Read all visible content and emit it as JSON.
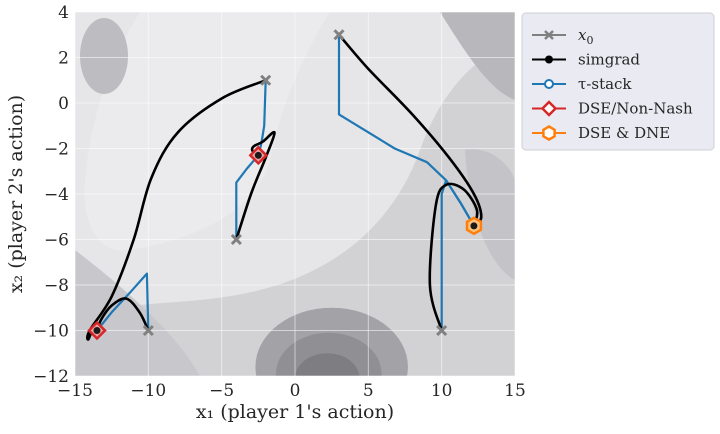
{
  "chart_data": {
    "type": "line",
    "xlabel": "x₁ (player 1's action)",
    "ylabel": "x₂ (player 2's action)",
    "xlim": [
      -15,
      15
    ],
    "ylim": [
      -12,
      4
    ],
    "xticks": [
      -15,
      -10,
      -5,
      0,
      5,
      10,
      15
    ],
    "yticks": [
      4,
      2,
      0,
      -2,
      -4,
      -6,
      -8,
      -10,
      -12
    ],
    "xtick_labels": [
      "−15",
      "−10",
      "−5",
      "0",
      "5",
      "10",
      "15"
    ],
    "ytick_labels": [
      "4",
      "2",
      "0",
      "−2",
      "−4",
      "−6",
      "−8",
      "−10",
      "−12"
    ],
    "grid": true,
    "legend_position": "outside-right-top",
    "colors": {
      "x0": "#808080",
      "simgrad": "#000000",
      "tau_stack": "#1f77b4",
      "dse_non_nash": "#d62728",
      "dse_dne": "#ff7f0e"
    },
    "legend": [
      {
        "key": "x0",
        "label": "x0",
        "marker": "x"
      },
      {
        "key": "simgrad",
        "label": "simgrad",
        "marker": "dot"
      },
      {
        "key": "tau_stack",
        "label": "τ-stack",
        "marker": "circle"
      },
      {
        "key": "dse_non_nash",
        "label": "DSE/Non-Nash",
        "marker": "diamond"
      },
      {
        "key": "dse_dne",
        "label": "DSE & DNE",
        "marker": "hexagon"
      }
    ],
    "initial_points": [
      {
        "x": -2.0,
        "y": 1.0
      },
      {
        "x": -4.0,
        "y": -6.0
      },
      {
        "x": -10.0,
        "y": -10.0
      },
      {
        "x": 3.0,
        "y": 3.0
      },
      {
        "x": 10.0,
        "y": -10.0
      }
    ],
    "dse_non_nash_points": [
      {
        "x": -13.5,
        "y": -10.0
      },
      {
        "x": -2.5,
        "y": -2.3
      }
    ],
    "dse_dne_points": [
      {
        "x": 12.2,
        "y": -5.4
      }
    ],
    "simgrad_paths": [
      [
        [
          -2,
          1
        ],
        [
          -5,
          0.2
        ],
        [
          -8,
          -1.3
        ],
        [
          -9.8,
          -3.3
        ],
        [
          -11,
          -6
        ],
        [
          -12.5,
          -8.5
        ],
        [
          -14,
          -10
        ],
        [
          -14.1,
          -10.4
        ],
        [
          -13.8,
          -10
        ],
        [
          -13.5,
          -10
        ]
      ],
      [
        [
          -4,
          -6
        ],
        [
          -3,
          -4
        ],
        [
          -2,
          -2.4
        ],
        [
          -1.4,
          -1.3
        ],
        [
          -2.2,
          -1.7
        ],
        [
          -2.8,
          -1.9
        ],
        [
          -2.9,
          -2.1
        ],
        [
          -2.5,
          -2.3
        ]
      ],
      [
        [
          -10,
          -10
        ],
        [
          -10.6,
          -9.2
        ],
        [
          -11.5,
          -8.6
        ],
        [
          -12.5,
          -8.9
        ],
        [
          -13.2,
          -9.5
        ],
        [
          -13.5,
          -10
        ]
      ],
      [
        [
          3,
          3
        ],
        [
          5,
          1.5
        ],
        [
          8,
          -0.5
        ],
        [
          10.5,
          -2.4
        ],
        [
          12.2,
          -4
        ],
        [
          12.7,
          -5
        ],
        [
          12.2,
          -5.4
        ]
      ],
      [
        [
          10,
          -10
        ],
        [
          9.2,
          -8
        ],
        [
          9.6,
          -4.5
        ],
        [
          10.3,
          -3.6
        ],
        [
          11.5,
          -3.8
        ],
        [
          12.4,
          -4.7
        ],
        [
          12.2,
          -5.4
        ]
      ]
    ],
    "tau_stack_paths": [
      [
        [
          -2,
          1
        ],
        [
          -2.1,
          -1.0
        ],
        [
          -2.3,
          -1.8
        ],
        [
          -2.5,
          -2.3
        ]
      ],
      [
        [
          -4,
          -6
        ],
        [
          -4,
          -3.5
        ],
        [
          -3.3,
          -2.9
        ],
        [
          -2.5,
          -2.3
        ]
      ],
      [
        [
          -10,
          -10
        ],
        [
          -10.1,
          -7.5
        ],
        [
          -11.2,
          -8.3
        ],
        [
          -12.5,
          -9.2
        ],
        [
          -13.5,
          -10
        ]
      ],
      [
        [
          3,
          3
        ],
        [
          3,
          -0.5
        ],
        [
          6.8,
          -2
        ],
        [
          9,
          -2.6
        ],
        [
          10.3,
          -3.4
        ],
        [
          11.3,
          -4.4
        ],
        [
          12.2,
          -5.4
        ]
      ],
      [
        [
          10,
          -10
        ],
        [
          10,
          -4
        ],
        [
          10.3,
          -3.4
        ],
        [
          11.3,
          -4.4
        ],
        [
          12.2,
          -5.4
        ]
      ]
    ],
    "contour_levels": [
      {
        "fill": "#a3a3a7",
        "x": 2.5,
        "y": -11.6,
        "rx": 5.2,
        "ry": 2.6
      },
      {
        "fill": "#909094",
        "x": 2.3,
        "y": -11.9,
        "rx": 3.6,
        "ry": 1.8
      },
      {
        "fill": "#7e7e82",
        "x": 2.2,
        "y": -12.1,
        "rx": 2.2,
        "ry": 1.1
      }
    ]
  }
}
